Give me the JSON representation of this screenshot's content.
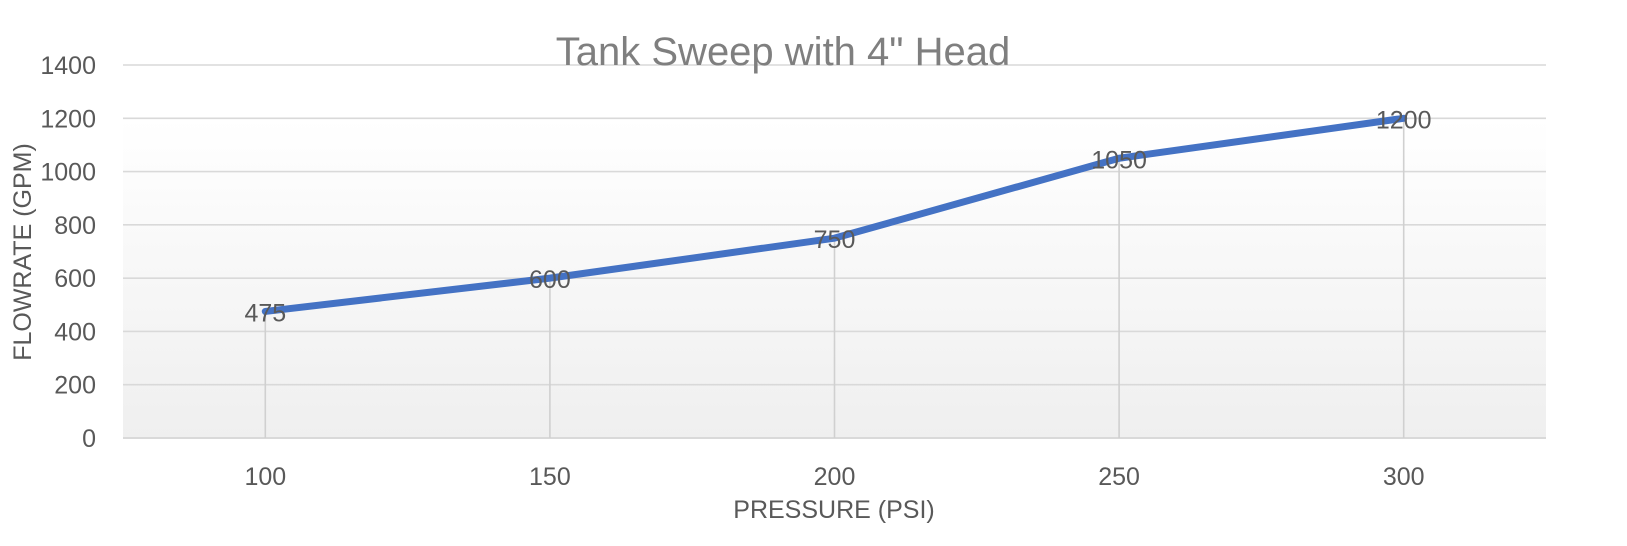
{
  "chart_data": {
    "type": "line",
    "title": "Tank Sweep with 4\" Head",
    "xlabel": "PRESSURE (PSI)",
    "ylabel": "FLOWRATE (GPM)",
    "categories": [
      "100",
      "150",
      "200",
      "250",
      "300"
    ],
    "x": [
      100,
      150,
      200,
      250,
      300
    ],
    "values": [
      475,
      600,
      750,
      1050,
      1200
    ],
    "series": [
      {
        "name": "Flowrate",
        "values": [
          475,
          600,
          750,
          1050,
          1200
        ],
        "color": "#4472c4"
      }
    ],
    "data_labels": [
      "475",
      "600",
      "750",
      "1050",
      "1200"
    ],
    "ylim": [
      0,
      1400
    ],
    "yticks": [
      0,
      200,
      400,
      600,
      800,
      1000,
      1200,
      1400
    ],
    "ytick_labels": [
      "0",
      "200",
      "400",
      "600",
      "800",
      "1000",
      "1200",
      "1400"
    ],
    "xtick_labels": [
      "100",
      "150",
      "200",
      "250",
      "300"
    ],
    "grid": {
      "horizontal": true,
      "vertical_drop_lines": true
    },
    "legend": "none",
    "colors": {
      "line": "#4472c4",
      "grid": "#d9d9d9",
      "text": "#595959",
      "title": "#7f7f7f"
    }
  }
}
